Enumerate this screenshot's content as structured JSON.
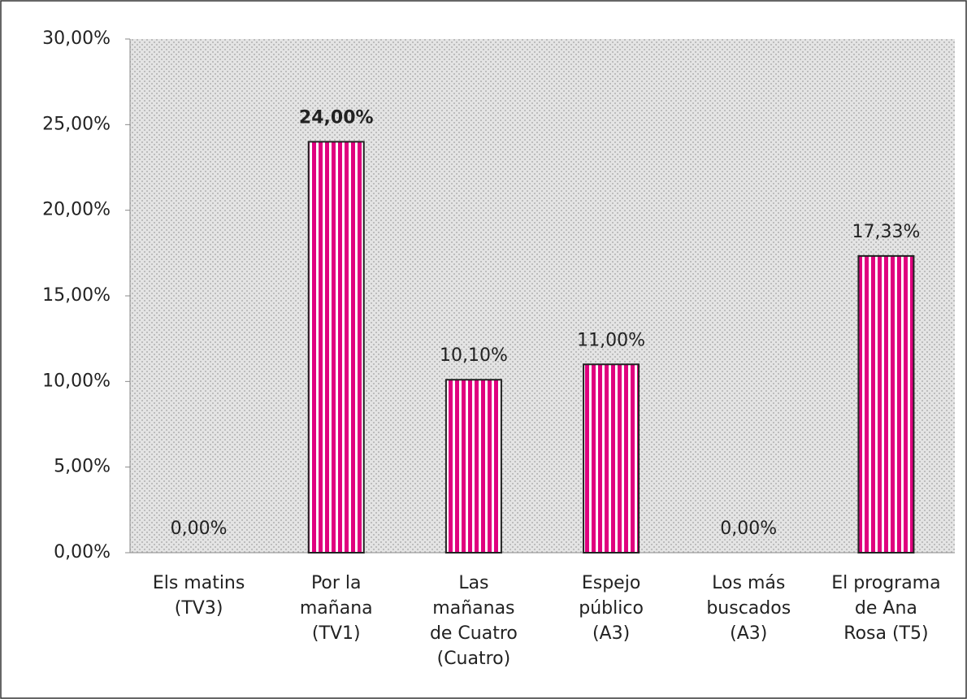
{
  "chart_data": {
    "type": "bar",
    "categories": [
      "Els matins (TV3)",
      "Por la mañana (TV1)",
      "Las mañanas de Cuatro (Cuatro)",
      "Espejo público (A3)",
      "Los más buscados (A3)",
      "El programa de Ana Rosa (T5)"
    ],
    "values": [
      0,
      24,
      10.1,
      11,
      0,
      17.33
    ],
    "value_labels": [
      "0,00%",
      "24,00%",
      "10,10%",
      "11,00%",
      "0,00%",
      "17,33%"
    ],
    "color": "#e0007f",
    "ylim": [
      0,
      30
    ],
    "yticks": [
      {
        "value": 0,
        "label": "0,00%"
      },
      {
        "value": 5,
        "label": "5,00%"
      },
      {
        "value": 10,
        "label": "10,00%"
      },
      {
        "value": 15,
        "label": "15,00%"
      },
      {
        "value": 20,
        "label": "20,00%"
      },
      {
        "value": 25,
        "label": "25,00%"
      },
      {
        "value": 30,
        "label": "30,00%"
      }
    ]
  }
}
